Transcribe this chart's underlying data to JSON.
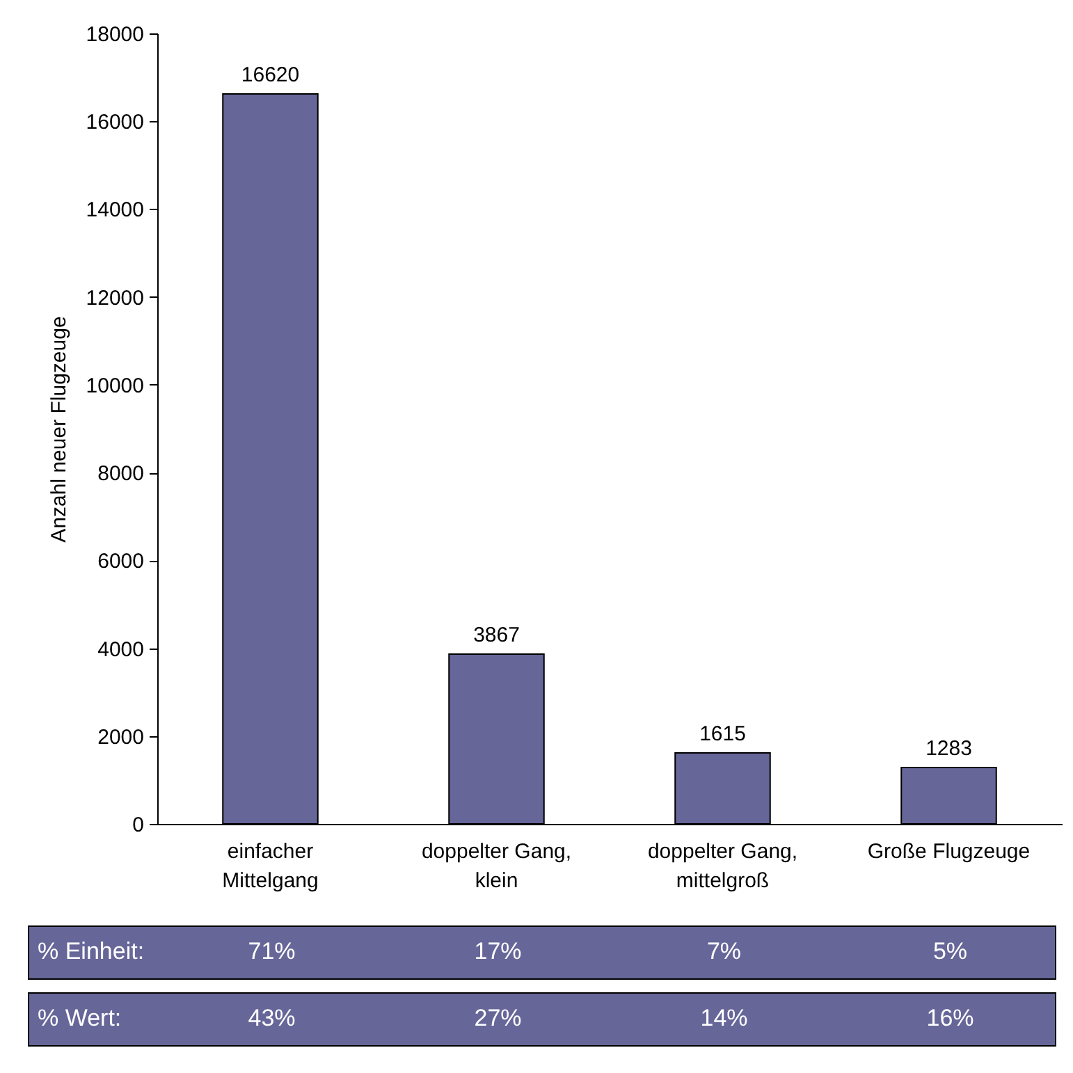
{
  "chart_data": {
    "type": "bar",
    "ylabel": "Anzahl neuer Flugzeuge",
    "categories": [
      "einfacher Mittelgang",
      "doppelter Gang, klein",
      "doppelter Gang, mittelgroß",
      "Große Flugzeuge"
    ],
    "values": [
      16620,
      3867,
      1615,
      1283
    ],
    "color": "#666699",
    "data_labels": true,
    "ylim": [
      0,
      18000
    ],
    "yticks": [
      0,
      2000,
      4000,
      6000,
      8000,
      10000,
      12000,
      14000,
      16000,
      18000
    ],
    "grid": false,
    "annotations": [
      "% Einheit:",
      "71%",
      "17%",
      "7%",
      "5%",
      "% Wert:",
      "43%",
      "27%",
      "14%",
      "16%"
    ]
  }
}
